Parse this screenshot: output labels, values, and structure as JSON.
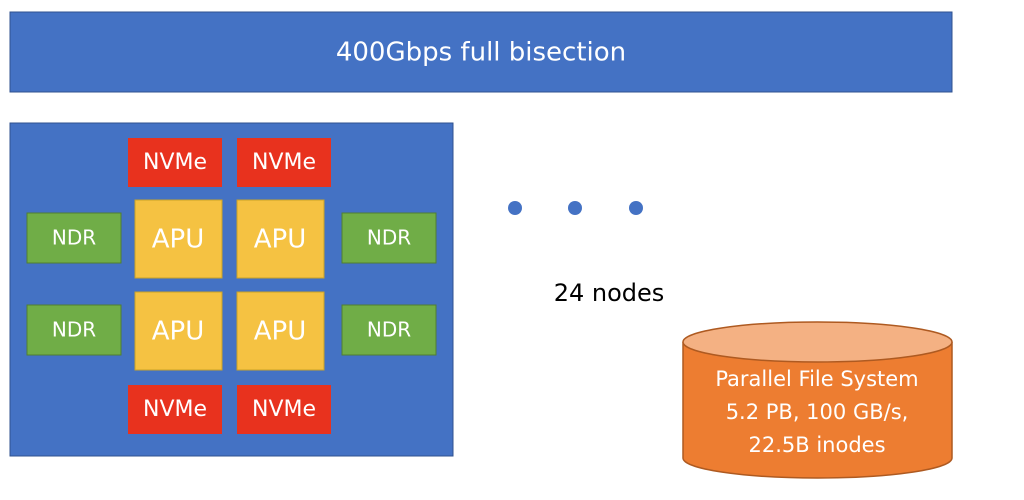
{
  "network": {
    "label": "400Gbps full bisection"
  },
  "node": {
    "nvme": [
      "NVMe",
      "NVMe",
      "NVMe",
      "NVMe"
    ],
    "ndr": [
      "NDR",
      "NDR",
      "NDR",
      "NDR"
    ],
    "apu": [
      "APU",
      "APU",
      "APU",
      "APU"
    ]
  },
  "node_count": "24 nodes",
  "storage": {
    "lines": [
      "Parallel File System",
      "5.2 PB, 100 GB/s,",
      "22.5B inodes"
    ]
  }
}
